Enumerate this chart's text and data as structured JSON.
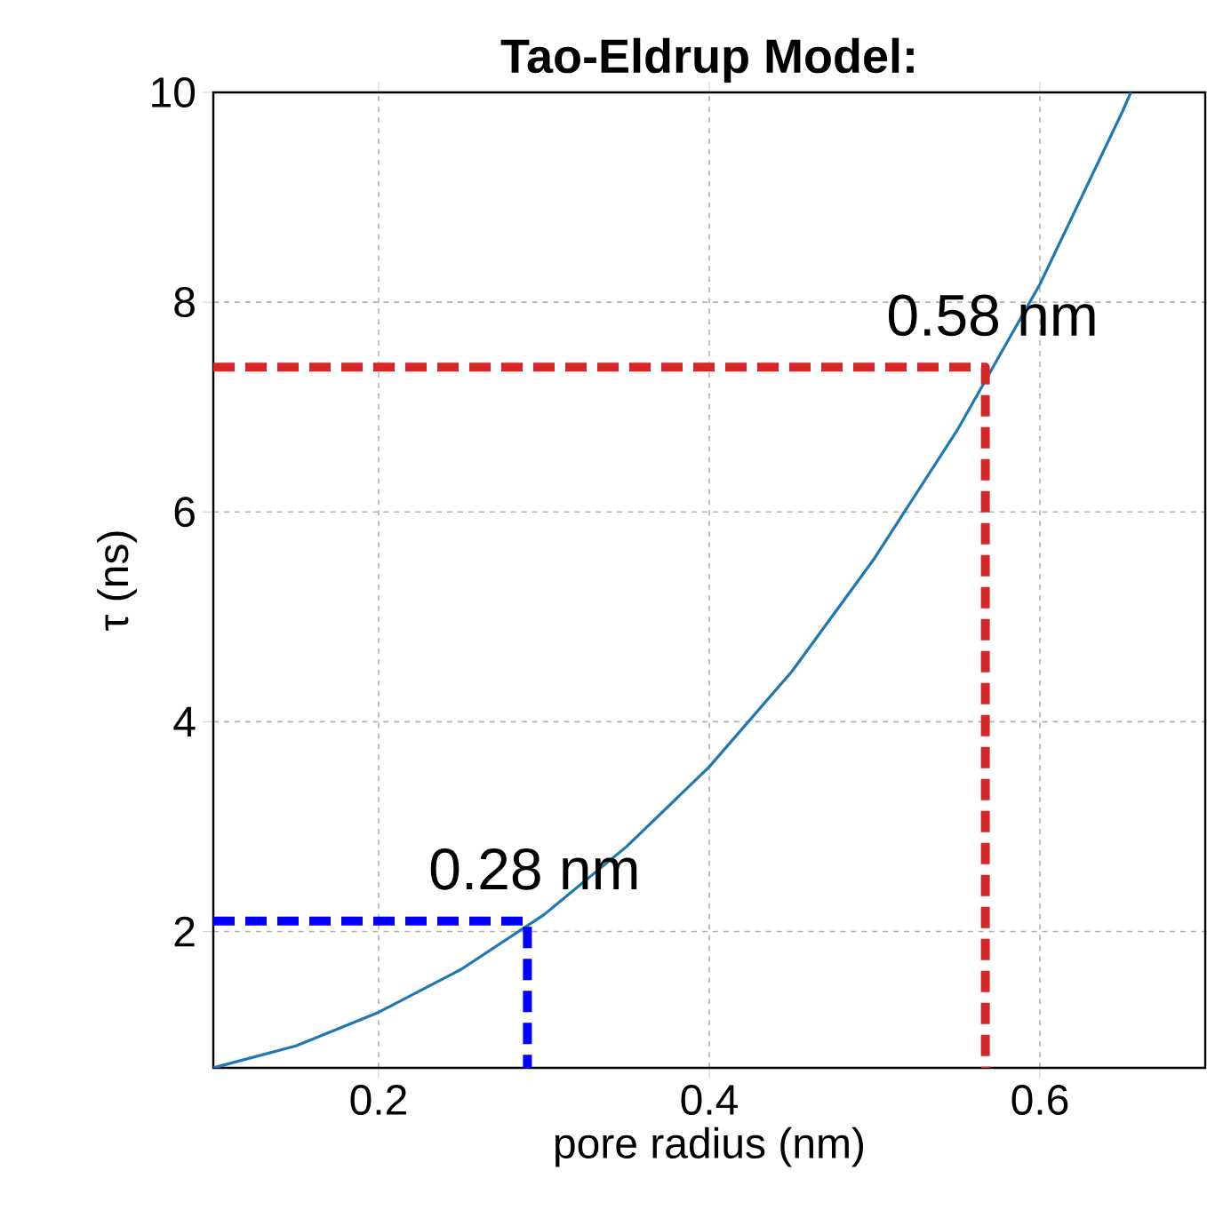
{
  "chart_data": {
    "type": "line",
    "title": "Tao-Eldrup Model:",
    "xlabel": "pore radius (nm)",
    "ylabel": "τ (ns)",
    "xlim": [
      0.1,
      0.7
    ],
    "ylim": [
      0.7,
      10
    ],
    "xticks": [
      0.2,
      0.4,
      0.6
    ],
    "yticks": [
      2,
      4,
      6,
      8,
      10
    ],
    "grid": true,
    "marker": "none",
    "series": [
      {
        "color": "#1f77b4",
        "line_style": "solid",
        "x": [
          0.1,
          0.15,
          0.2,
          0.25,
          0.3,
          0.35,
          0.4,
          0.45,
          0.5,
          0.55,
          0.6,
          0.65,
          0.655
        ],
        "values": [
          0.7,
          0.91,
          1.23,
          1.64,
          2.16,
          2.81,
          3.57,
          4.48,
          5.56,
          6.78,
          8.17,
          9.82,
          10.0
        ]
      },
      {
        "color": "#0000ff",
        "line_style": "dashed",
        "x": [
          0.1,
          0.29,
          0.29
        ],
        "values": [
          2.1,
          2.1,
          0.7
        ]
      },
      {
        "color": "#d62728",
        "line_style": "dashed",
        "x": [
          0.1,
          0.567,
          0.567
        ],
        "values": [
          7.38,
          7.38,
          0.7
        ]
      }
    ],
    "annotations": [
      {
        "text": "0.28 nm",
        "x": 0.29,
        "y": 2.1
      },
      {
        "text": "0.58 nm",
        "x": 0.567,
        "y": 7.38
      }
    ]
  }
}
